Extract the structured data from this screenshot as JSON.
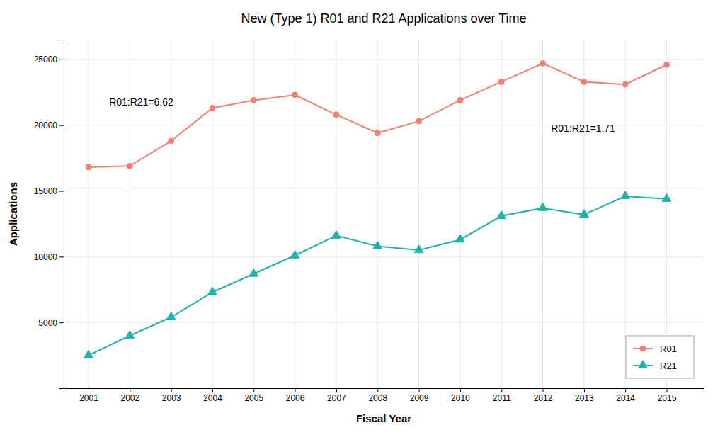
{
  "chart_data": {
    "type": "line",
    "title": "New (Type 1) R01 and R21 Applications over Time",
    "x_label": "Fiscal Year",
    "y_label": "Applications",
    "x": [
      2001,
      2002,
      2003,
      2004,
      2005,
      2006,
      2007,
      2008,
      2009,
      2010,
      2011,
      2012,
      2013,
      2014,
      2015
    ],
    "series": [
      {
        "name": "R01",
        "color": "#F08072",
        "marker": "circle",
        "values": [
          16800,
          16900,
          18800,
          21300,
          21900,
          22300,
          20800,
          19400,
          20300,
          21900,
          23300,
          24700,
          23300,
          23100,
          24600
        ]
      },
      {
        "name": "R21",
        "color": "#20B2AA",
        "marker": "triangle",
        "values": [
          2500,
          4000,
          5400,
          7300,
          8700,
          10100,
          11600,
          10800,
          10500,
          11300,
          13100,
          13700,
          13200,
          14600,
          14400
        ]
      }
    ],
    "annotations": [
      {
        "text": "R01:R21=6.62",
        "x": 2001.5,
        "y": 21500
      },
      {
        "text": "R01:R21=1.71",
        "x": 2012.2,
        "y": 19500
      }
    ],
    "xlim": [
      2000.4,
      2015.9
    ],
    "xticks": [
      2001,
      2002,
      2003,
      2004,
      2005,
      2006,
      2007,
      2008,
      2009,
      2010,
      2011,
      2012,
      2013,
      2014,
      2015
    ],
    "ylim": [
      0,
      26500
    ],
    "yticks": [
      5000,
      10000,
      15000,
      20000,
      25000
    ],
    "grid": true,
    "legend": "lower right"
  }
}
